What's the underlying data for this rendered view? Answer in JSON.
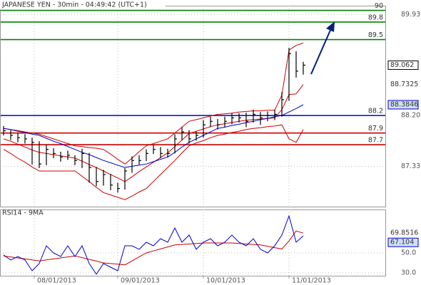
{
  "chart_data": [
    {
      "type": "ohlc",
      "title": "JAPANESE YEN - 30min - 04:49:42 (UTC+1)",
      "categories": [
        null,
        null,
        null,
        null,
        null,
        null,
        null,
        null,
        null,
        null,
        null,
        null,
        null,
        null,
        null,
        null,
        null,
        null,
        null,
        null,
        null,
        null,
        null,
        null,
        null,
        null,
        null,
        null,
        null,
        null,
        null,
        null,
        null,
        null,
        null,
        null,
        null,
        null,
        null,
        null,
        null,
        null,
        null
      ],
      "high": [
        88.02,
        87.95,
        87.9,
        87.88,
        87.82,
        87.76,
        87.7,
        87.64,
        87.58,
        87.6,
        87.52,
        87.63,
        87.56,
        87.32,
        87.27,
        87.2,
        87.05,
        87.3,
        87.5,
        87.52,
        87.62,
        87.7,
        87.66,
        87.63,
        87.88,
        88.0,
        87.95,
        87.93,
        88.12,
        88.18,
        88.14,
        88.18,
        88.24,
        88.24,
        88.25,
        88.3,
        88.26,
        88.27,
        88.3,
        88.6,
        89.36,
        89.3,
        89.12
      ],
      "low": [
        87.86,
        87.78,
        87.74,
        87.72,
        87.36,
        87.3,
        87.35,
        87.47,
        87.41,
        87.44,
        87.35,
        87.3,
        87.05,
        86.99,
        87.0,
        86.92,
        86.88,
        86.93,
        87.22,
        87.36,
        87.42,
        87.54,
        87.47,
        87.48,
        87.55,
        87.78,
        87.72,
        87.77,
        87.82,
        88.0,
        87.96,
        88.0,
        88.05,
        88.08,
        88.0,
        88.08,
        88.04,
        88.1,
        88.12,
        88.18,
        88.45,
        88.85,
        88.9
      ],
      "close": [
        87.94,
        87.86,
        87.82,
        87.8,
        87.74,
        87.37,
        87.62,
        87.55,
        87.49,
        87.52,
        87.43,
        87.55,
        87.31,
        87.07,
        87.19,
        87.01,
        86.95,
        87.25,
        87.43,
        87.43,
        87.55,
        87.62,
        87.55,
        87.55,
        87.8,
        87.92,
        87.8,
        87.86,
        88.04,
        88.1,
        88.04,
        88.1,
        88.16,
        88.16,
        88.1,
        88.22,
        88.16,
        88.2,
        88.22,
        88.47,
        89.26,
        88.96,
        89.062
      ],
      "color": "#000000",
      "series": [
        {
          "color": "#cc0000",
          "values": [
            87.98,
            87.96,
            87.94,
            87.92,
            87.9,
            87.88,
            87.84,
            87.8,
            87.76,
            87.72,
            87.68,
            87.67,
            87.65,
            87.64,
            87.62,
            87.54,
            87.45,
            87.37,
            87.47,
            87.58,
            87.68,
            87.72,
            87.76,
            87.8,
            87.9,
            88.0,
            88.1,
            88.13,
            88.16,
            88.19,
            88.22,
            88.23,
            88.24,
            88.26,
            88.27,
            88.28,
            88.28,
            88.29,
            88.29,
            88.55,
            89.32,
            89.4,
            89.44
          ]
        },
        {
          "color": "#cc0000",
          "values": [
            87.62,
            87.55,
            87.47,
            87.4,
            87.32,
            87.25,
            87.25,
            87.25,
            87.25,
            87.25,
            87.25,
            87.16,
            87.07,
            86.97,
            86.88,
            86.84,
            86.8,
            86.76,
            86.82,
            86.89,
            86.95,
            87.07,
            87.19,
            87.31,
            87.43,
            87.56,
            87.68,
            87.73,
            87.77,
            87.82,
            87.86,
            87.88,
            87.91,
            87.93,
            87.96,
            87.98,
            87.99,
            88.01,
            88.02,
            88.04,
            87.8,
            87.74,
            87.96
          ]
        },
        {
          "color": "#cc0000",
          "label": "text",
          "values": [
            87.8,
            87.76,
            87.71,
            87.66,
            87.61,
            87.57,
            87.55,
            87.53,
            87.51,
            87.49,
            87.47,
            87.42,
            87.36,
            87.31,
            87.25,
            87.19,
            87.13,
            87.07,
            87.15,
            87.24,
            87.32,
            87.4,
            87.48,
            87.56,
            87.67,
            87.78,
            87.89,
            87.93,
            87.97,
            88.01,
            88.04,
            88.06,
            88.08,
            88.1,
            88.12,
            88.13,
            88.14,
            88.15,
            88.16,
            88.3,
            88.56,
            88.57,
            88.7325
          ]
        },
        {
          "color": "#0000cc",
          "label": "box",
          "values": [
            87.98,
            87.96,
            87.93,
            87.91,
            87.88,
            87.86,
            87.81,
            87.76,
            87.72,
            87.67,
            87.62,
            87.57,
            87.53,
            87.48,
            87.43,
            87.39,
            87.35,
            87.31,
            87.33,
            87.35,
            87.37,
            87.41,
            87.45,
            87.49,
            87.57,
            87.66,
            87.74,
            87.8,
            87.86,
            87.92,
            87.98,
            88.0,
            88.03,
            88.05,
            88.08,
            88.1,
            88.13,
            88.15,
            88.18,
            88.2,
            88.26,
            88.32,
            88.3846
          ]
        }
      ],
      "levels": [
        {
          "value": 90,
          "color": "#008000"
        },
        {
          "value": 89.8,
          "color": "#008000"
        },
        {
          "value": 89.5,
          "color": "#008000"
        },
        {
          "value": 88.2,
          "color": "#0000cc"
        },
        {
          "value": 87.9,
          "color": "#cc0000"
        },
        {
          "value": 87.7,
          "color": "#cc0000"
        }
      ],
      "xlim": [
        -0.5,
        53.5
      ],
      "ylim": [
        86.64,
        90.08
      ],
      "yticks": [
        89.93,
        {
          "value": 88.2,
          "label": "88.20"
        },
        87.33
      ],
      "grid": true
    },
    {
      "type": "line",
      "title": "RSI14 - 9MA",
      "categories": [
        null,
        null,
        null,
        null,
        null,
        null,
        null,
        null,
        null,
        null,
        null,
        null,
        null,
        null,
        null,
        null,
        null,
        null,
        null,
        null,
        null,
        null,
        null,
        null,
        null,
        null,
        null,
        null,
        null,
        null,
        null,
        null,
        null,
        null,
        null,
        null,
        null,
        null,
        null,
        null,
        null,
        null,
        null
      ],
      "series": [
        {
          "color": "#cc0000",
          "label": "text",
          "values": [
            47,
            46,
            45,
            44,
            43,
            42,
            43,
            44,
            45,
            46,
            47,
            45.3,
            43.5,
            41.8,
            40,
            39.3,
            38.7,
            38,
            42,
            46,
            50,
            52,
            54,
            56,
            58,
            58.5,
            59,
            59.5,
            60,
            60,
            60,
            60,
            60,
            59.5,
            59,
            58.5,
            58,
            56.7,
            55.3,
            54,
            62,
            72,
            69.8516
          ]
        },
        {
          "color": "#0000cc",
          "label": "box",
          "values": [
            47.9,
            42.9,
            46.4,
            42.9,
            32.1,
            39.3,
            57.1,
            50,
            46.4,
            57.1,
            46.4,
            57.1,
            39.3,
            28.6,
            39.3,
            35.7,
            32.1,
            57.1,
            57.1,
            53.6,
            60.7,
            57.1,
            64.3,
            60.7,
            75,
            60.7,
            67.9,
            53.6,
            60.7,
            64.3,
            57.1,
            60.7,
            67.9,
            60.7,
            57.1,
            64.3,
            53.6,
            50,
            57.1,
            67.9,
            87.1,
            60.7,
            67.104
          ]
        }
      ],
      "xlim": [
        -0.5,
        53.5
      ],
      "ylim": [
        27.1,
        93.6
      ],
      "yticks": [
        {
          "value": 50,
          "label": "50.0"
        },
        {
          "value": 30,
          "label": "30.0"
        }
      ],
      "xticks": [
        {
          "value": 4.3,
          "label": "08/01/2013"
        },
        {
          "value": 16,
          "label": "09/01/2013"
        },
        {
          "value": 28,
          "label": "10/01/2013"
        },
        {
          "value": 40,
          "label": "11/01/2013"
        }
      ],
      "grid": true
    }
  ]
}
